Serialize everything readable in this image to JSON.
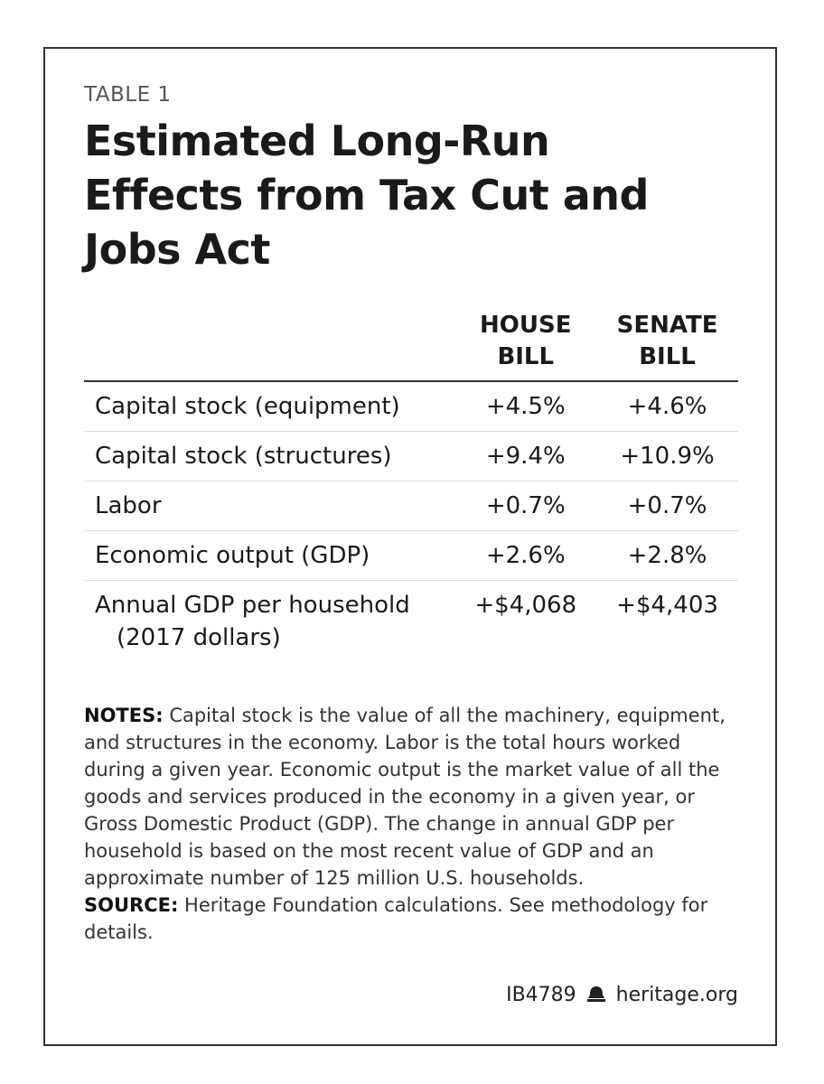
{
  "label": "TABLE 1",
  "title": "Estimated Long-Run Effects from Tax Cut and Jobs Act",
  "table": {
    "columns": [
      "HOUSE BILL",
      "SENATE BILL"
    ],
    "rows": [
      [
        "Capital stock (equipment)",
        "+4.5%",
        "+4.6%"
      ],
      [
        "Capital stock (structures)",
        "+9.4%",
        "+10.9%"
      ],
      [
        "Labor",
        "+0.7%",
        "+0.7%"
      ],
      [
        "Economic output (GDP)",
        "+2.6%",
        "+2.8%"
      ],
      [
        "Annual GDP per household (2017 dollars)",
        "+$4,068",
        "+$4,403"
      ]
    ]
  },
  "notes": {
    "label": "NOTES:",
    "text": "Capital stock is the value of all the machinery, equipment, and structures in the economy. Labor is the total hours worked during a given year. Economic output is the market value of all the goods and services produced in the economy in a given year, or Gross Domestic Product (GDP). The change in annual GDP per household is based on the most recent value of GDP and an approximate number of 125 million U.S. households."
  },
  "source": {
    "label": "SOURCE:",
    "text": "Heritage Foundation calculations. See methodology for details."
  },
  "footer": {
    "id": "IB4789",
    "site": "heritage.org"
  }
}
